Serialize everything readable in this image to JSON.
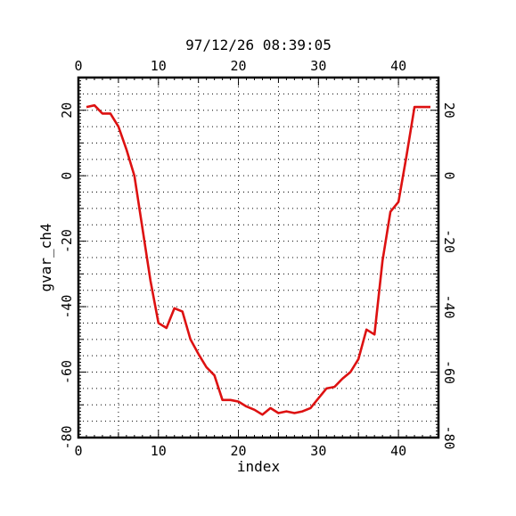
{
  "chart_data": {
    "type": "line",
    "title": "97/12/26 08:39:05",
    "xlabel": "index",
    "ylabel": "gvar_ch4",
    "xlim": [
      0,
      45
    ],
    "ylim": [
      -80,
      30
    ],
    "xticks": [
      0,
      10,
      20,
      30,
      40
    ],
    "yticks": [
      -80,
      -60,
      -40,
      -20,
      0,
      20
    ],
    "grid": true,
    "grid_style": "dotted",
    "colors": {
      "line": "#dd1111",
      "axis": "#000000",
      "grid": "#000000"
    },
    "series": [
      {
        "x": [
          1,
          2,
          3,
          4,
          5,
          6,
          7,
          8,
          9,
          10,
          11,
          12,
          13,
          14,
          15,
          16,
          17,
          18,
          19,
          20,
          21,
          22,
          23,
          24,
          25,
          26,
          27,
          28,
          29,
          30,
          31,
          32,
          33,
          34,
          35,
          36,
          37,
          38,
          39,
          40,
          41,
          42,
          43,
          44
        ],
        "values": [
          21,
          21.5,
          19,
          19,
          15,
          8,
          0,
          -16,
          -32,
          -45,
          -46.5,
          -40.5,
          -41.5,
          -50,
          -54.5,
          -58.5,
          -61,
          -68.5,
          -68.5,
          -69,
          -70.5,
          -71.5,
          -73,
          -71,
          -72.5,
          -72,
          -72.5,
          -72,
          -71,
          -68,
          -65,
          -64.5,
          -62,
          -60,
          -56,
          -47,
          -48.5,
          -26,
          -11,
          -8,
          6,
          21,
          21,
          21
        ]
      }
    ]
  }
}
